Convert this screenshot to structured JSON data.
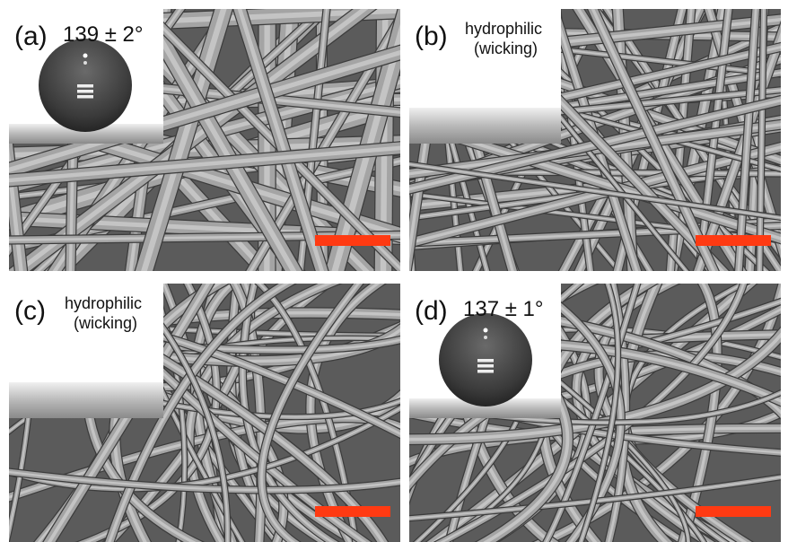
{
  "panels": [
    {
      "label": "(a)",
      "caption": [
        "139 ± 2°"
      ]
    },
    {
      "label": "(b)",
      "caption": [
        "hydrophilic",
        "(wicking)"
      ]
    },
    {
      "label": "(c)",
      "caption": [
        "hydrophilic",
        "(wicking)"
      ]
    },
    {
      "label": "(d)",
      "caption": [
        "137 ± 1°"
      ]
    }
  ]
}
